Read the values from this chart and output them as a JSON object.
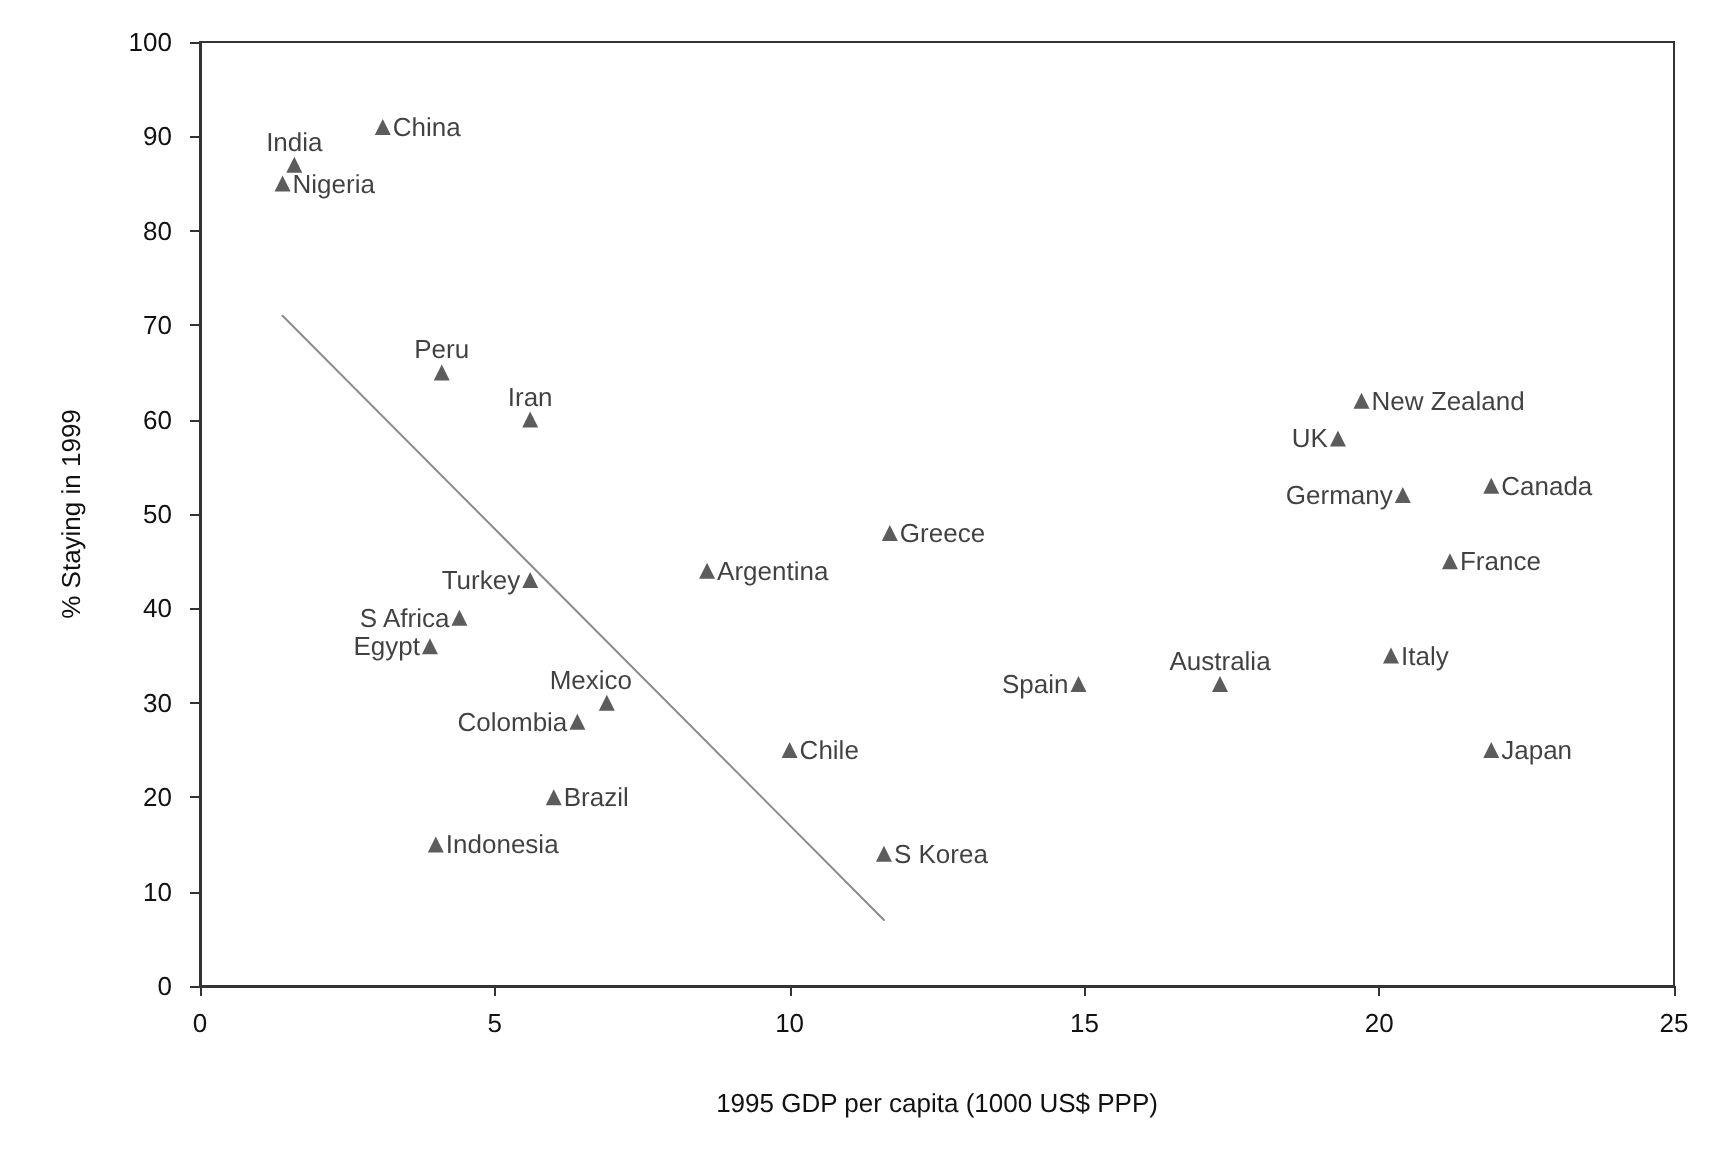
{
  "chart_data": {
    "type": "scatter",
    "xlabel": "1995 GDP per capita (1000 US$ PPP)",
    "ylabel": "% Staying in 1999",
    "xlim": [
      0,
      25
    ],
    "xticks": [
      0,
      5,
      10,
      15,
      20,
      25
    ],
    "ylim": [
      0,
      100
    ],
    "yticks": [
      0,
      10,
      20,
      30,
      40,
      50,
      60,
      70,
      80,
      90,
      100
    ],
    "grid": false,
    "marker": "triangle",
    "series": [
      {
        "color": "#333333",
        "x": [
          3.1,
          1.6,
          1.4,
          4.1,
          5.6,
          5.6,
          4.4,
          3.9,
          8.6,
          11.7,
          6.9,
          6.4,
          10.0,
          6.0,
          4.0,
          11.6,
          19.7,
          19.3,
          20.4,
          21.9,
          21.2,
          20.2,
          14.9,
          17.3,
          21.9
        ],
        "values": [
          91,
          87,
          85,
          65,
          60,
          43,
          39,
          36,
          44,
          48,
          30,
          28,
          25,
          20,
          15,
          14,
          62,
          58,
          52,
          53,
          45,
          35,
          32,
          32,
          25
        ]
      },
      {
        "type": "line",
        "color": "#8c8c8c",
        "marker": "none",
        "x": [
          1.4,
          11.6
        ],
        "values": [
          71,
          7
        ]
      }
    ],
    "annotations": [
      {
        "text": "China",
        "x": 3.1,
        "y": 91
      },
      {
        "text": "India",
        "x": 1.6,
        "y": 87
      },
      {
        "text": "Nigeria",
        "x": 1.4,
        "y": 85
      },
      {
        "text": "Peru",
        "x": 4.1,
        "y": 65
      },
      {
        "text": "Iran",
        "x": 5.6,
        "y": 60
      },
      {
        "text": "Turkey",
        "x": 5.6,
        "y": 43
      },
      {
        "text": "S Africa",
        "x": 4.4,
        "y": 39
      },
      {
        "text": "Egypt",
        "x": 3.9,
        "y": 36
      },
      {
        "text": "Argentina",
        "x": 8.6,
        "y": 44
      },
      {
        "text": "Greece",
        "x": 11.7,
        "y": 48
      },
      {
        "text": "Mexico",
        "x": 6.9,
        "y": 30
      },
      {
        "text": "Colombia",
        "x": 6.4,
        "y": 28
      },
      {
        "text": "Chile",
        "x": 10.0,
        "y": 25
      },
      {
        "text": "Brazil",
        "x": 6.0,
        "y": 20
      },
      {
        "text": "Indonesia",
        "x": 4.0,
        "y": 15
      },
      {
        "text": "S Korea",
        "x": 11.6,
        "y": 14
      },
      {
        "text": "New Zealand",
        "x": 19.7,
        "y": 62
      },
      {
        "text": "UK",
        "x": 19.3,
        "y": 58
      },
      {
        "text": "Germany",
        "x": 20.4,
        "y": 52
      },
      {
        "text": "Canada",
        "x": 21.9,
        "y": 53
      },
      {
        "text": "France",
        "x": 21.2,
        "y": 45
      },
      {
        "text": "Italy",
        "x": 20.2,
        "y": 35
      },
      {
        "text": "Spain",
        "x": 14.9,
        "y": 32
      },
      {
        "text": "Australia",
        "x": 17.3,
        "y": 32
      },
      {
        "text": "Japan",
        "x": 21.9,
        "y": 25
      }
    ]
  }
}
